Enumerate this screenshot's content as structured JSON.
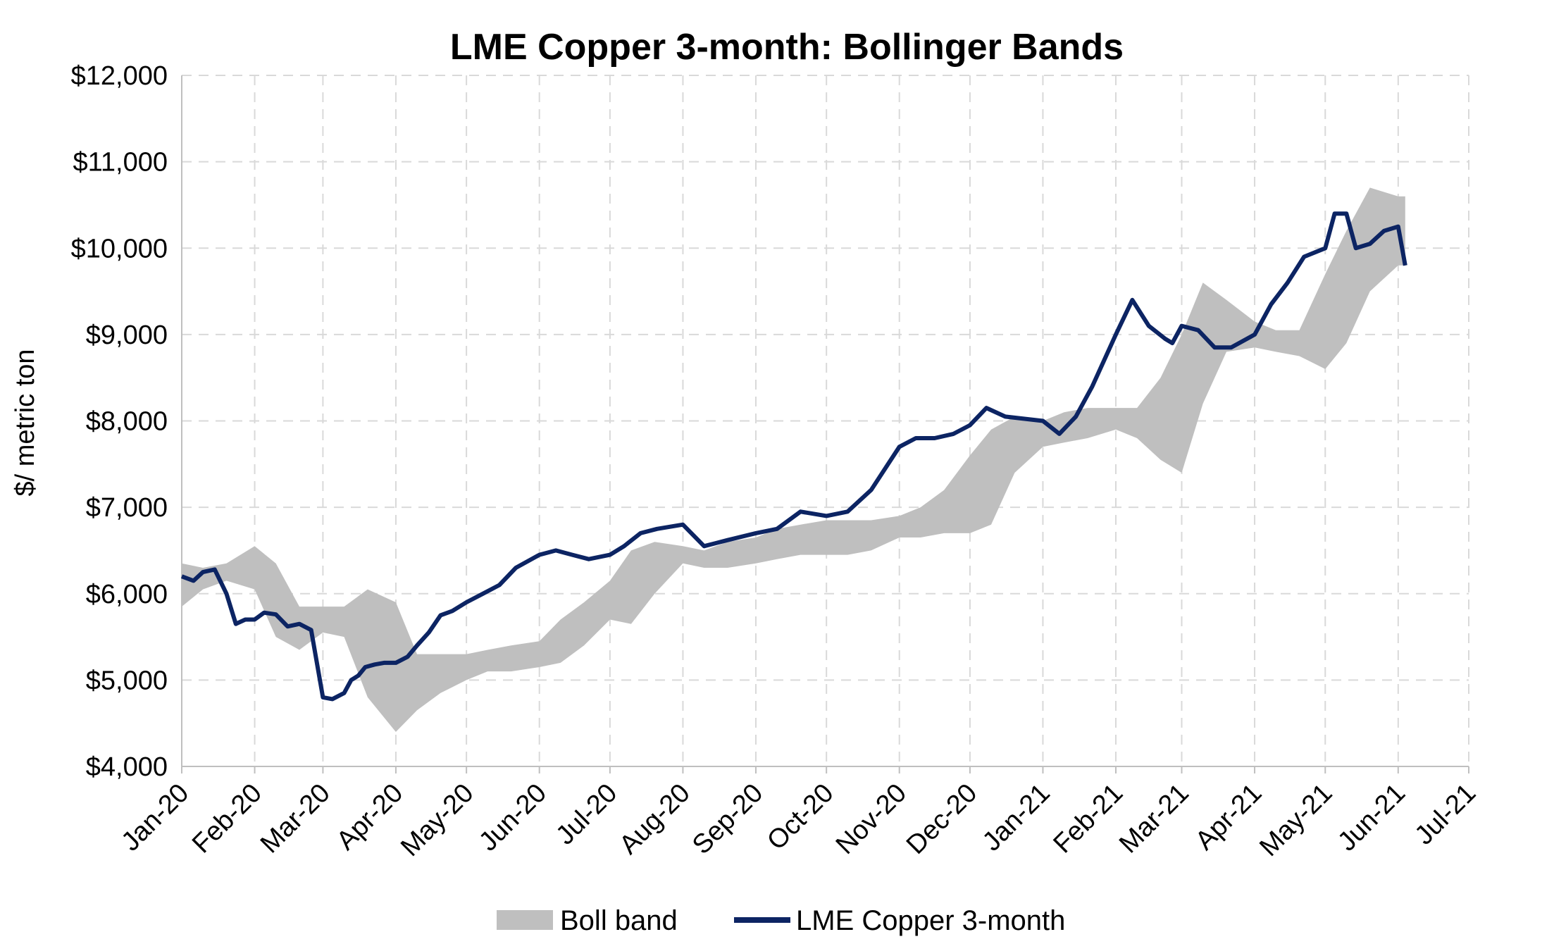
{
  "chart_data": {
    "type": "area",
    "title": "LME Copper 3-month: Bollinger Bands",
    "ylabel": "$/ metric ton",
    "xlabel": "",
    "ylim": [
      4000,
      12000
    ],
    "y_ticks": [
      "$4,000",
      "$5,000",
      "$6,000",
      "$7,000",
      "$8,000",
      "$9,000",
      "$10,000",
      "$11,000",
      "$12,000"
    ],
    "x_ticks": [
      "Jan-20",
      "Feb-20",
      "Mar-20",
      "Apr-20",
      "May-20",
      "Jun-20",
      "Jul-20",
      "Aug-20",
      "Sep-20",
      "Oct-20",
      "Nov-20",
      "Dec-20",
      "Jan-21",
      "Feb-21",
      "Mar-21",
      "Apr-21",
      "May-21",
      "Jun-21",
      "Jul-21"
    ],
    "x_dates": [
      "2020-01-01",
      "2020-02-01",
      "2020-03-01",
      "2020-04-01",
      "2020-05-01",
      "2020-06-01",
      "2020-07-01",
      "2020-08-01",
      "2020-09-01",
      "2020-10-01",
      "2020-11-01",
      "2020-12-01",
      "2021-01-01",
      "2021-02-01",
      "2021-03-01",
      "2021-04-01",
      "2021-05-01",
      "2021-06-01",
      "2021-07-01"
    ],
    "grid": true,
    "legend_position": "bottom",
    "colors": {
      "band": "#bfbfbf",
      "line": "#0c2463",
      "grid": "#d9d9d9"
    },
    "series": [
      {
        "name": "LME Copper 3-month",
        "type": "line",
        "x": [
          "2020-01-01",
          "2020-01-06",
          "2020-01-10",
          "2020-01-15",
          "2020-01-20",
          "2020-01-24",
          "2020-01-28",
          "2020-02-01",
          "2020-02-05",
          "2020-02-10",
          "2020-02-15",
          "2020-02-20",
          "2020-02-25",
          "2020-03-01",
          "2020-03-05",
          "2020-03-10",
          "2020-03-13",
          "2020-03-16",
          "2020-03-19",
          "2020-03-23",
          "2020-03-27",
          "2020-04-01",
          "2020-04-06",
          "2020-04-10",
          "2020-04-15",
          "2020-04-20",
          "2020-04-25",
          "2020-05-01",
          "2020-05-08",
          "2020-05-15",
          "2020-05-22",
          "2020-06-01",
          "2020-06-08",
          "2020-06-15",
          "2020-06-22",
          "2020-07-01",
          "2020-07-07",
          "2020-07-14",
          "2020-07-21",
          "2020-08-01",
          "2020-08-10",
          "2020-08-20",
          "2020-09-01",
          "2020-09-10",
          "2020-09-20",
          "2020-10-01",
          "2020-10-10",
          "2020-10-20",
          "2020-11-01",
          "2020-11-08",
          "2020-11-16",
          "2020-11-24",
          "2020-12-01",
          "2020-12-08",
          "2020-12-16",
          "2021-01-01",
          "2021-01-08",
          "2021-01-15",
          "2021-01-22",
          "2021-02-01",
          "2021-02-08",
          "2021-02-15",
          "2021-02-22",
          "2021-02-25",
          "2021-03-01",
          "2021-03-08",
          "2021-03-15",
          "2021-03-22",
          "2021-04-01",
          "2021-04-08",
          "2021-04-15",
          "2021-04-22",
          "2021-05-01",
          "2021-05-05",
          "2021-05-10",
          "2021-05-14",
          "2021-05-20",
          "2021-05-26",
          "2021-06-01",
          "2021-06-04"
        ],
        "values": [
          6200,
          6150,
          6250,
          6280,
          6000,
          5650,
          5700,
          5700,
          5780,
          5760,
          5620,
          5650,
          5580,
          4800,
          4780,
          4850,
          5000,
          5050,
          5150,
          5180,
          5200,
          5200,
          5270,
          5400,
          5550,
          5750,
          5800,
          5900,
          6000,
          6100,
          6300,
          6450,
          6500,
          6450,
          6400,
          6450,
          6550,
          6700,
          6750,
          6800,
          6550,
          6620,
          6700,
          6750,
          6950,
          6900,
          6950,
          7200,
          7700,
          7800,
          7800,
          7850,
          7950,
          8150,
          8050,
          8000,
          7850,
          8050,
          8400,
          9000,
          9400,
          9100,
          8950,
          8900,
          9100,
          9050,
          8850,
          8850,
          9000,
          9350,
          9600,
          9900,
          10000,
          10400,
          10400,
          10000,
          10050,
          10200,
          10250,
          9800
        ]
      },
      {
        "name": "Boll band",
        "type": "band",
        "x": [
          "2020-01-01",
          "2020-01-10",
          "2020-01-20",
          "2020-02-01",
          "2020-02-10",
          "2020-02-20",
          "2020-03-01",
          "2020-03-10",
          "2020-03-20",
          "2020-04-01",
          "2020-04-10",
          "2020-04-20",
          "2020-05-01",
          "2020-05-10",
          "2020-05-20",
          "2020-06-01",
          "2020-06-10",
          "2020-06-20",
          "2020-07-01",
          "2020-07-10",
          "2020-07-20",
          "2020-08-01",
          "2020-08-10",
          "2020-08-20",
          "2020-09-01",
          "2020-09-10",
          "2020-09-20",
          "2020-10-01",
          "2020-10-10",
          "2020-10-20",
          "2020-11-01",
          "2020-11-10",
          "2020-11-20",
          "2020-12-01",
          "2020-12-10",
          "2020-12-20",
          "2021-01-01",
          "2021-01-10",
          "2021-01-20",
          "2021-02-01",
          "2021-02-10",
          "2021-02-20",
          "2021-03-01",
          "2021-03-10",
          "2021-03-20",
          "2021-04-01",
          "2021-04-10",
          "2021-04-20",
          "2021-05-01",
          "2021-05-10",
          "2021-05-20",
          "2021-06-01",
          "2021-06-04"
        ],
        "upper": [
          6350,
          6300,
          6350,
          6550,
          6350,
          5850,
          5850,
          5850,
          6050,
          5900,
          5300,
          5300,
          5300,
          5350,
          5400,
          5450,
          5700,
          5900,
          6150,
          6500,
          6600,
          6550,
          6500,
          6600,
          6650,
          6750,
          6800,
          6850,
          6850,
          6850,
          6900,
          7000,
          7200,
          7600,
          7900,
          8050,
          8000,
          8100,
          8150,
          8150,
          8150,
          8500,
          9000,
          9600,
          9400,
          9150,
          9050,
          9050,
          9700,
          10200,
          10700,
          10600,
          10600
        ],
        "lower": [
          5850,
          6050,
          6150,
          6050,
          5500,
          5350,
          5550,
          5500,
          4800,
          4400,
          4650,
          4850,
          5000,
          5100,
          5100,
          5150,
          5200,
          5400,
          5700,
          5650,
          6000,
          6350,
          6300,
          6300,
          6350,
          6400,
          6450,
          6450,
          6450,
          6500,
          6650,
          6650,
          6700,
          6700,
          6800,
          7400,
          7700,
          7750,
          7800,
          7900,
          7800,
          7550,
          7400,
          8200,
          8800,
          8850,
          8800,
          8750,
          8600,
          8900,
          9500,
          9800,
          9800
        ]
      }
    ]
  }
}
